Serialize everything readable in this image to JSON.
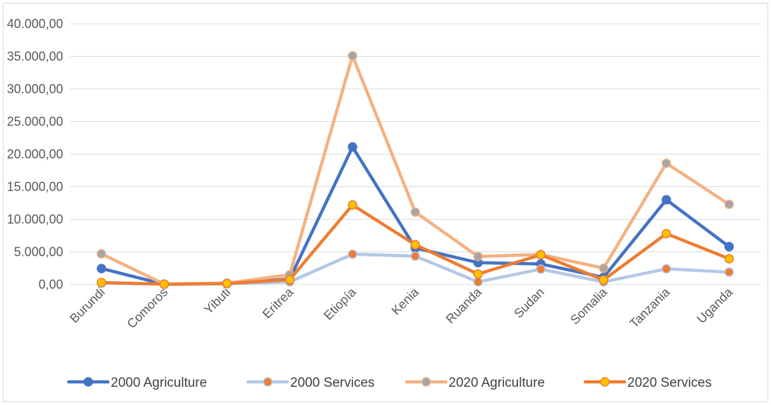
{
  "chart_data": {
    "type": "line",
    "categories": [
      "Burundi",
      "Comoros",
      "Yibuti",
      "Eritrea",
      "Etiopía",
      "Kenia",
      "Ruanda",
      "Sudan",
      "Somalia",
      "Tanzania",
      "Uganda"
    ],
    "ylim": [
      0,
      40000
    ],
    "yticks": [
      0,
      5000,
      10000,
      15000,
      20000,
      25000,
      30000,
      35000,
      40000
    ],
    "ytick_labels": [
      "0,00",
      "5.000,00",
      "10.000,00",
      "15.000,00",
      "20.000,00",
      "25.000,00",
      "30.000,00",
      "35.000,00",
      "40.000,00"
    ],
    "grid": true,
    "legend_position": "bottom",
    "series": [
      {
        "name": "2000 Agriculture",
        "line_color": "#4472c4",
        "marker_fill": "#4472c4",
        "marker_stroke": "#4472c4",
        "values": [
          2450,
          30,
          120,
          850,
          21100,
          5600,
          3350,
          3150,
          1100,
          13000,
          5800
        ]
      },
      {
        "name": "2000 Services",
        "line_color": "#b4c7e7",
        "marker_fill": "#ed7d31",
        "marker_stroke": "#b4c7e7",
        "values": [
          200,
          50,
          100,
          400,
          4650,
          4350,
          400,
          2350,
          400,
          2400,
          1900
        ]
      },
      {
        "name": "2020 Agriculture",
        "line_color": "#f4b183",
        "marker_fill": "#a5a5a5",
        "marker_stroke": "#f4b183",
        "values": [
          4700,
          60,
          200,
          1500,
          35100,
          11100,
          4300,
          4600,
          2500,
          18600,
          12300
        ]
      },
      {
        "name": "2020 Services",
        "line_color": "#ed7d31",
        "marker_fill": "#ffc000",
        "marker_stroke": "#ed7d31",
        "values": [
          300,
          50,
          150,
          750,
          12200,
          6100,
          1600,
          4550,
          700,
          7800,
          3950
        ]
      }
    ]
  }
}
